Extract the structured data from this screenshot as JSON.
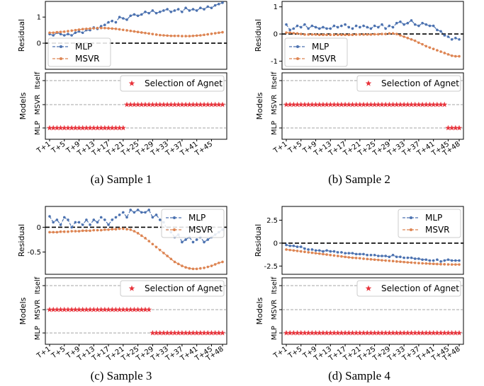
{
  "colors": {
    "mlp": "#4c72b0",
    "msvr": "#dd8452",
    "star": "#e8343c",
    "ref": "#000000",
    "grid": "#888888"
  },
  "chart_data": [
    {
      "type": "line",
      "caption": "(a) Sample 1",
      "residual": {
        "ylabel": "Residual",
        "yticks": [
          0,
          1
        ],
        "ylim": [
          -1.0,
          1.6
        ],
        "legend_position": "lower-left",
        "series": [
          {
            "name": "MLP",
            "values": [
              0.35,
              0.3,
              0.4,
              0.35,
              0.3,
              0.35,
              0.3,
              0.4,
              0.45,
              0.4,
              0.5,
              0.5,
              0.6,
              0.55,
              0.65,
              0.7,
              0.8,
              0.85,
              0.8,
              1.0,
              0.95,
              0.9,
              1.05,
              1.1,
              1.05,
              1.1,
              1.2,
              1.15,
              1.25,
              1.15,
              1.2,
              1.25,
              1.3,
              1.2,
              1.25,
              1.3,
              1.2,
              1.35,
              1.25,
              1.3,
              1.25,
              1.35,
              1.3,
              1.4,
              1.35,
              1.45,
              1.5,
              1.55
            ]
          },
          {
            "name": "MSVR",
            "values": [
              0.4,
              0.4,
              0.42,
              0.43,
              0.44,
              0.46,
              0.48,
              0.5,
              0.52,
              0.54,
              0.55,
              0.56,
              0.57,
              0.58,
              0.58,
              0.58,
              0.57,
              0.56,
              0.55,
              0.53,
              0.51,
              0.49,
              0.47,
              0.45,
              0.43,
              0.41,
              0.39,
              0.37,
              0.35,
              0.33,
              0.31,
              0.3,
              0.29,
              0.28,
              0.28,
              0.28,
              0.27,
              0.27,
              0.27,
              0.28,
              0.29,
              0.3,
              0.32,
              0.34,
              0.36,
              0.38,
              0.4,
              0.42
            ]
          }
        ]
      },
      "selection": {
        "ylabel": "Models",
        "model_labels": [
          "MLP",
          "MSVR",
          "Itself"
        ],
        "legend": "Selection of Agnet",
        "selected": [
          0,
          0,
          0,
          0,
          0,
          0,
          0,
          0,
          0,
          0,
          0,
          0,
          0,
          0,
          0,
          0,
          0,
          0,
          0,
          0,
          0,
          1,
          1,
          1,
          1,
          1,
          1,
          1,
          1,
          1,
          1,
          1,
          1,
          1,
          1,
          1,
          1,
          1,
          1,
          1,
          1,
          1,
          1,
          1,
          1,
          1,
          1,
          1
        ],
        "xticks": [
          "T+1",
          "T+5",
          "T+9",
          "T+13",
          "T+17",
          "T+21",
          "T+25",
          "T+29",
          "T+33",
          "T+37",
          "T+41",
          "T+45"
        ]
      }
    },
    {
      "type": "line",
      "caption": "(b) Sample 2",
      "residual": {
        "ylabel": "Residual",
        "yticks": [
          -1,
          0,
          1
        ],
        "ylim": [
          -1.3,
          1.2
        ],
        "legend_position": "lower-left",
        "series": [
          {
            "name": "MLP",
            "values": [
              0.35,
              0.15,
              0.2,
              0.3,
              0.25,
              0.35,
              0.2,
              0.3,
              0.25,
              0.2,
              0.25,
              0.2,
              0.2,
              0.3,
              0.25,
              0.3,
              0.35,
              0.25,
              0.2,
              0.3,
              0.25,
              0.3,
              0.25,
              0.2,
              0.3,
              0.25,
              0.35,
              0.2,
              0.3,
              0.25,
              0.4,
              0.45,
              0.35,
              0.4,
              0.5,
              0.35,
              0.3,
              0.4,
              0.35,
              0.3,
              0.3,
              0.15,
              0.1,
              -0.05,
              -0.1,
              -0.2,
              -0.15,
              -0.2
            ]
          },
          {
            "name": "MSVR",
            "values": [
              0.05,
              0.05,
              0.03,
              0.02,
              0.0,
              -0.02,
              -0.02,
              -0.02,
              -0.02,
              -0.03,
              -0.03,
              -0.03,
              -0.03,
              -0.03,
              -0.03,
              -0.03,
              -0.03,
              -0.03,
              -0.03,
              -0.02,
              -0.02,
              -0.02,
              -0.02,
              -0.02,
              -0.01,
              -0.01,
              0.0,
              0.0,
              0.02,
              0.02,
              0.0,
              -0.05,
              -0.1,
              -0.15,
              -0.2,
              -0.25,
              -0.32,
              -0.38,
              -0.45,
              -0.5,
              -0.55,
              -0.6,
              -0.65,
              -0.7,
              -0.75,
              -0.8,
              -0.82,
              -0.82
            ]
          }
        ]
      },
      "selection": {
        "ylabel": "Models",
        "model_labels": [
          "MLP",
          "MSVR",
          "Itself"
        ],
        "legend": "Selection of Agnet",
        "selected": [
          1,
          1,
          1,
          1,
          1,
          1,
          1,
          1,
          1,
          1,
          1,
          1,
          1,
          1,
          1,
          1,
          1,
          1,
          1,
          1,
          1,
          1,
          1,
          1,
          1,
          1,
          1,
          1,
          1,
          1,
          1,
          1,
          1,
          1,
          1,
          1,
          1,
          1,
          1,
          1,
          1,
          1,
          1,
          1,
          0,
          0,
          0,
          0
        ],
        "xticks": [
          "T+1",
          "T+5",
          "T+9",
          "T+13",
          "T+17",
          "T+21",
          "T+25",
          "T+29",
          "T+33",
          "T+37",
          "T+41",
          "T+45",
          "T+48"
        ]
      }
    },
    {
      "type": "line",
      "caption": "(c) Sample 3",
      "residual": {
        "ylabel": "Residual",
        "yticks": [
          -0.5,
          0.0
        ],
        "ylim": [
          -0.95,
          0.42
        ],
        "legend_position": "top-right",
        "series": [
          {
            "name": "MLP",
            "values": [
              0.22,
              0.1,
              0.15,
              0.05,
              0.2,
              0.15,
              0.0,
              0.1,
              0.1,
              0.05,
              0.15,
              0.05,
              0.15,
              0.1,
              0.2,
              0.15,
              0.05,
              0.15,
              0.2,
              0.25,
              0.3,
              0.2,
              0.35,
              0.3,
              0.35,
              0.3,
              0.3,
              0.35,
              0.2,
              0.25,
              0.15,
              0.1,
              -0.05,
              -0.1,
              -0.2,
              -0.15,
              -0.3,
              -0.25,
              -0.2,
              -0.3,
              -0.25,
              -0.2,
              -0.3,
              -0.25,
              -0.2,
              -0.15,
              -0.1,
              -0.05
            ]
          },
          {
            "name": "MSVR",
            "values": [
              -0.1,
              -0.1,
              -0.1,
              -0.09,
              -0.09,
              -0.09,
              -0.08,
              -0.08,
              -0.08,
              -0.07,
              -0.07,
              -0.07,
              -0.06,
              -0.06,
              -0.06,
              -0.05,
              -0.05,
              -0.04,
              -0.04,
              -0.03,
              -0.03,
              -0.04,
              -0.05,
              -0.08,
              -0.12,
              -0.17,
              -0.22,
              -0.28,
              -0.34,
              -0.4,
              -0.46,
              -0.52,
              -0.58,
              -0.64,
              -0.7,
              -0.74,
              -0.78,
              -0.81,
              -0.83,
              -0.84,
              -0.84,
              -0.83,
              -0.82,
              -0.8,
              -0.78,
              -0.75,
              -0.72,
              -0.7
            ]
          }
        ]
      },
      "selection": {
        "ylabel": "Models",
        "model_labels": [
          "MLP",
          "MSVR",
          "Itself"
        ],
        "legend": "Selection of Agnet",
        "selected": [
          1,
          1,
          1,
          1,
          1,
          1,
          1,
          1,
          1,
          1,
          1,
          1,
          1,
          1,
          1,
          1,
          1,
          1,
          1,
          1,
          1,
          1,
          1,
          1,
          1,
          1,
          1,
          1,
          0,
          0,
          0,
          0,
          0,
          0,
          0,
          0,
          0,
          0,
          0,
          0,
          0,
          0,
          0,
          0,
          0,
          0,
          0,
          0
        ],
        "xticks": [
          "T+1",
          "T+5",
          "T+9",
          "T+13",
          "T+17",
          "T+21",
          "T+25",
          "T+29",
          "T+33",
          "T+37",
          "T+41",
          "T+45",
          "T+48"
        ]
      }
    },
    {
      "type": "line",
      "caption": "(d) Sample 4",
      "residual": {
        "ylabel": "Residual",
        "yticks": [
          -2.5,
          0.0,
          2.5
        ],
        "ylim": [
          -3.4,
          4.0
        ],
        "legend_position": "top-right",
        "series": [
          {
            "name": "MLP",
            "values": [
              -0.2,
              -0.3,
              -0.3,
              -0.4,
              -0.4,
              -0.6,
              -0.7,
              -0.7,
              -0.8,
              -0.8,
              -0.9,
              -0.8,
              -0.9,
              -0.9,
              -1.0,
              -1.0,
              -1.1,
              -1.1,
              -1.1,
              -1.2,
              -1.2,
              -1.2,
              -1.3,
              -1.3,
              -1.3,
              -1.4,
              -1.4,
              -1.4,
              -1.5,
              -1.3,
              -1.5,
              -1.5,
              -1.6,
              -1.6,
              -1.6,
              -1.7,
              -1.7,
              -1.8,
              -1.8,
              -1.9,
              -1.9,
              -1.8,
              -2.0,
              -1.9,
              -1.8,
              -1.9,
              -1.9,
              -1.9
            ]
          },
          {
            "name": "MSVR",
            "values": [
              -0.7,
              -0.75,
              -0.8,
              -0.85,
              -0.9,
              -0.95,
              -1.0,
              -1.05,
              -1.1,
              -1.15,
              -1.2,
              -1.25,
              -1.3,
              -1.35,
              -1.4,
              -1.45,
              -1.5,
              -1.55,
              -1.6,
              -1.62,
              -1.65,
              -1.7,
              -1.73,
              -1.77,
              -1.8,
              -1.83,
              -1.87,
              -1.9,
              -1.93,
              -1.96,
              -2.0,
              -2.03,
              -2.06,
              -2.1,
              -2.12,
              -2.15,
              -2.18,
              -2.2,
              -2.22,
              -2.24,
              -2.26,
              -2.28,
              -2.3,
              -2.31,
              -2.32,
              -2.33,
              -2.33,
              -2.33
            ]
          }
        ]
      },
      "selection": {
        "ylabel": "Models",
        "model_labels": [
          "MLP",
          "MSVR",
          "Itself"
        ],
        "legend": "Selection of Agnet",
        "selected": [
          0,
          0,
          0,
          0,
          0,
          0,
          0,
          0,
          0,
          0,
          0,
          0,
          0,
          0,
          0,
          0,
          0,
          0,
          0,
          0,
          0,
          0,
          0,
          0,
          0,
          0,
          0,
          0,
          0,
          0,
          0,
          0,
          0,
          0,
          0,
          0,
          0,
          0,
          0,
          0,
          0,
          0,
          0,
          0,
          0,
          0,
          0,
          0
        ],
        "xticks": [
          "T+1",
          "T+5",
          "T+9",
          "T+13",
          "T+17",
          "T+21",
          "T+25",
          "T+29",
          "T+33",
          "T+37",
          "T+41",
          "T+45",
          "T+48"
        ]
      }
    }
  ]
}
